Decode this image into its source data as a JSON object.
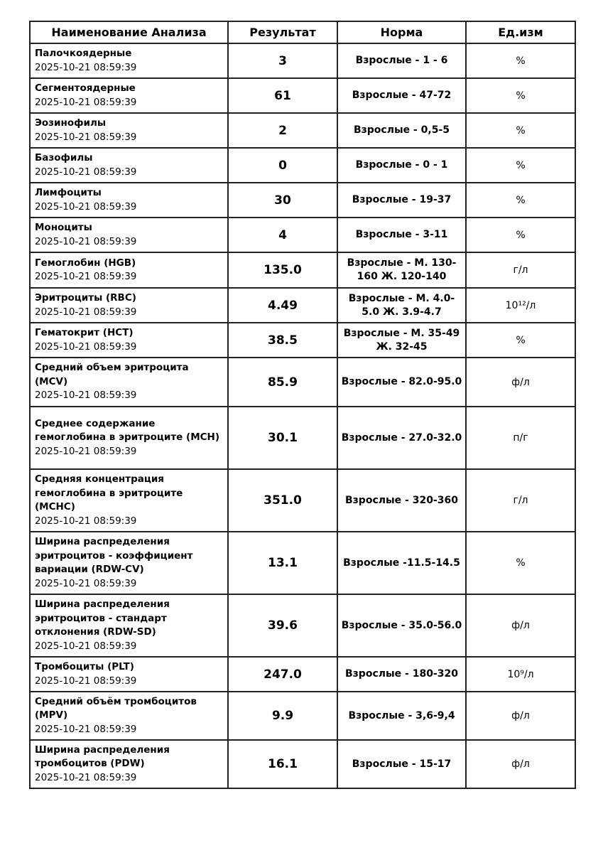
{
  "header": [
    "Наименование Анализа",
    "Результат",
    "Норма",
    "Ед.изм"
  ],
  "rows": [
    {
      "name": "Палочкоядерные",
      "date": "2025-10-21 08:59:39",
      "result": "3",
      "norm": "Взрослые - 1 - 6",
      "unit": "%",
      "h": 51
    },
    {
      "name": "Сегментоядерные",
      "date": "2025-10-21 08:59:39",
      "result": "61",
      "norm": "Взрослые - 47-72",
      "unit": "%",
      "h": 51
    },
    {
      "name": "Эозинофилы",
      "date": "2025-10-21 08:59:39",
      "result": "2",
      "norm": "Взрослые - 0,5-5",
      "unit": "%",
      "h": 51
    },
    {
      "name": "Базофилы",
      "date": "2025-10-21 08:59:39",
      "result": "0",
      "norm": "Взрослые - 0 - 1",
      "unit": "%",
      "h": 51
    },
    {
      "name": "Лимфоциты",
      "date": "2025-10-21 08:59:39",
      "result": "30",
      "norm": "Взрослые - 19-37",
      "unit": "%",
      "h": 51
    },
    {
      "name": "Моноциты",
      "date": "2025-10-21 08:59:39",
      "result": "4",
      "norm": "Взрослые - 3-11",
      "unit": "%",
      "h": 51
    },
    {
      "name": "Гемоглобин (HGB)",
      "date": "2025-10-21 08:59:39",
      "result": "135.0",
      "norm": "Взрослые - М. 130-160 Ж. 120-140",
      "unit": "г/л",
      "h": 52
    },
    {
      "name": "Эритроциты (RBC)",
      "date": "2025-10-21 08:59:39",
      "result": "4.49",
      "norm": "Взрослые - М. 4.0-5.0 Ж. 3.9-4.7",
      "unit": "10¹²/л",
      "h": 51
    },
    {
      "name": "Гематокрит (HCT)",
      "date": "2025-10-21 08:59:39",
      "result": "38.5",
      "norm": "Взрослые - М. 35-49 Ж. 32-45",
      "unit": "%",
      "h": 51
    },
    {
      "name": "Средний объем эритроцита (MCV)",
      "date": "2025-10-21 08:59:39",
      "result": "85.9",
      "norm": "Взрослые - 82.0-95.0",
      "unit": "ф/л",
      "h": 71
    },
    {
      "name": "Среднее содержание гемоглобина в эритроците (MCH)",
      "date": "2025-10-21 08:59:39",
      "result": "30.1",
      "norm": "Взрослые - 27.0-32.0",
      "unit": "п/г",
      "h": 90
    },
    {
      "name": "Средняя концентрация гемоглобина в эритроците (MCHC)",
      "date": "2025-10-21 08:59:39",
      "result": "351.0",
      "norm": "Взрослые - 320-360",
      "unit": "г/л",
      "h": 90
    },
    {
      "name": "Ширина распределения эритроцитов - коэффициент вариации (RDW-CV)",
      "date": "2025-10-21 08:59:39",
      "result": "13.1",
      "norm": "Взрослые -11.5-14.5",
      "unit": "%",
      "h": 90
    },
    {
      "name": "Ширина распределения эритроцитов - стандарт отклонения (RDW-SD)",
      "date": "2025-10-21 08:59:39",
      "result": "39.6",
      "norm": "Взрослые - 35.0-56.0",
      "unit": "ф/л",
      "h": 90
    },
    {
      "name": "Тромбоциты (PLT)",
      "date": "2025-10-21 08:59:39",
      "result": "247.0",
      "norm": "Взрослые - 180-320",
      "unit": "10⁹/л",
      "h": 51
    },
    {
      "name": "Средний объём тромбоцитов (MPV)",
      "date": "2025-10-21 08:59:39",
      "result": "9.9",
      "norm": "Взрослые - 3,6-9,4",
      "unit": "ф/л",
      "h": 70
    },
    {
      "name": "Ширина распределения тромбоцитов (PDW)",
      "date": "2025-10-21 08:59:39",
      "result": "16.1",
      "norm": "Взрослые - 15-17",
      "unit": "ф/л",
      "h": 70
    }
  ]
}
